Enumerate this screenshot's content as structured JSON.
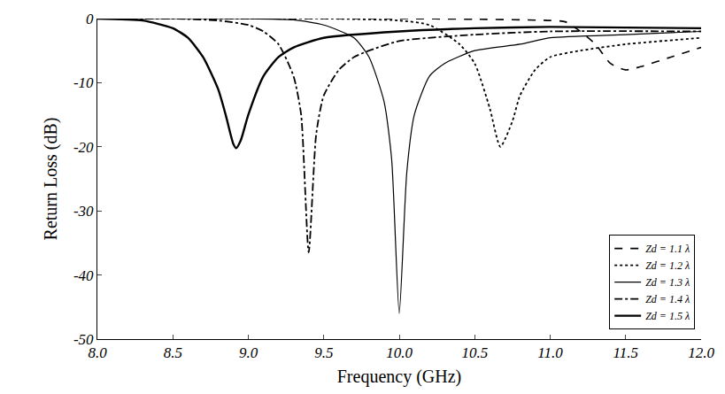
{
  "chart_data": {
    "type": "line",
    "x_label": "Frequency (GHz)",
    "y_label": "Return Loss (dB)",
    "xlim": [
      8,
      12
    ],
    "ylim": [
      -50,
      0
    ],
    "xticks": [
      {
        "value": 8,
        "label": "8.0"
      },
      {
        "value": 8.5,
        "label": "8.5"
      },
      {
        "value": 9,
        "label": "9.0"
      },
      {
        "value": 9.5,
        "label": "9.5"
      },
      {
        "value": 10,
        "label": "10.0"
      },
      {
        "value": 10.5,
        "label": "10.5"
      },
      {
        "value": 11,
        "label": "11.0"
      },
      {
        "value": 11.5,
        "label": "11.5"
      },
      {
        "value": 12,
        "label": "12.0"
      }
    ],
    "yticks": [
      0,
      -10,
      -20,
      -30,
      -40,
      -50
    ],
    "grid": false,
    "legend": "bottom right",
    "series": [
      {
        "name": "Zd = 1.1 λ",
        "color": "#000000",
        "line_style": "dash",
        "x": [
          8.0,
          9.0,
          10.0,
          10.5,
          11.0,
          11.1,
          11.2,
          11.3,
          11.4,
          11.5,
          11.6,
          11.8,
          12.0
        ],
        "values": [
          0,
          0,
          0,
          -0.1,
          -0.3,
          -0.5,
          -2,
          -4,
          -7,
          -8,
          -7.5,
          -6,
          -4.5
        ]
      },
      {
        "name": "Zd = 1.2 λ",
        "color": "#000000",
        "line_style": "dot",
        "x": [
          8.0,
          9.0,
          9.5,
          10.0,
          10.2,
          10.4,
          10.5,
          10.6,
          10.67,
          10.75,
          10.8,
          10.9,
          11.0,
          11.2,
          11.5,
          12.0
        ],
        "values": [
          0,
          0,
          0,
          -0.3,
          -1,
          -4,
          -7,
          -14,
          -20,
          -16,
          -12,
          -8,
          -6,
          -5,
          -4,
          -3
        ]
      },
      {
        "name": "Zd = 1.3 λ",
        "color": "#000000",
        "line_style": "solid",
        "x": [
          8.0,
          9.0,
          9.3,
          9.5,
          9.7,
          9.8,
          9.9,
          9.95,
          10.0,
          10.05,
          10.1,
          10.2,
          10.3,
          10.5,
          10.8,
          11.0,
          11.5,
          12.0
        ],
        "values": [
          0,
          0,
          -0.2,
          -1,
          -3,
          -6,
          -13,
          -22,
          -46,
          -24,
          -15,
          -9,
          -7,
          -5,
          -4,
          -3,
          -2.5,
          -2
        ]
      },
      {
        "name": "Zd = 1.4 λ",
        "color": "#000000",
        "line_style": "dashdot",
        "x": [
          8.0,
          8.5,
          8.8,
          9.0,
          9.1,
          9.2,
          9.3,
          9.35,
          9.4,
          9.45,
          9.5,
          9.6,
          9.7,
          9.8,
          10.0,
          10.5,
          11.0,
          12.0
        ],
        "values": [
          0,
          0,
          -0.3,
          -1,
          -2,
          -4,
          -9,
          -15,
          -36.5,
          -18,
          -12,
          -8,
          -6,
          -5,
          -3.5,
          -2.5,
          -2,
          -2
        ]
      },
      {
        "name": "Zd = 1.5 λ",
        "color": "#000000",
        "line_style": "solid",
        "x": [
          8.0,
          8.3,
          8.5,
          8.6,
          8.7,
          8.8,
          8.85,
          8.9,
          8.92,
          8.95,
          9.0,
          9.1,
          9.2,
          9.3,
          9.5,
          10.0,
          10.5,
          11.0,
          12.0
        ],
        "values": [
          0,
          -0.3,
          -1.5,
          -3,
          -6,
          -11,
          -15,
          -19.5,
          -20.2,
          -19,
          -15,
          -9,
          -6,
          -4.5,
          -3,
          -2,
          -1.5,
          -1.3,
          -1.5
        ]
      }
    ]
  }
}
